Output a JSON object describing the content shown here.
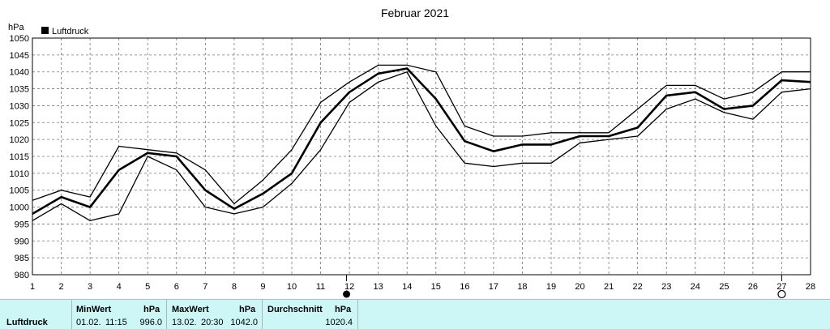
{
  "chart_data": {
    "type": "line",
    "title": "Februar 2021",
    "ylabel": "hPa",
    "legend": "Luftdruck",
    "legend_position": "top-left",
    "grid": true,
    "ylim": [
      980,
      1050
    ],
    "xlim": [
      1,
      28
    ],
    "y_ticks": [
      980,
      985,
      990,
      995,
      1000,
      1005,
      1010,
      1015,
      1020,
      1025,
      1030,
      1035,
      1040,
      1045,
      1050
    ],
    "x_ticks": [
      1,
      2,
      3,
      4,
      5,
      6,
      7,
      8,
      9,
      10,
      11,
      12,
      13,
      14,
      15,
      16,
      17,
      18,
      19,
      20,
      21,
      22,
      23,
      24,
      25,
      26,
      27,
      28
    ],
    "x": [
      1,
      2,
      3,
      4,
      5,
      6,
      7,
      8,
      9,
      10,
      11,
      12,
      13,
      14,
      15,
      16,
      17,
      18,
      19,
      20,
      21,
      22,
      23,
      24,
      25,
      26,
      27,
      28
    ],
    "series": [
      {
        "role": "max",
        "values": [
          1002,
          1005,
          1003,
          1018,
          1017,
          1016,
          1011,
          1001,
          1008,
          1017,
          1031,
          1037,
          1042,
          1042,
          1040,
          1024,
          1021,
          1021,
          1022,
          1022,
          1022,
          1029,
          1036,
          1036,
          1032,
          1034,
          1040,
          1040
        ]
      },
      {
        "role": "avg",
        "values": [
          998,
          1003,
          1000,
          1011,
          1016,
          1015,
          1005,
          999.5,
          1004,
          1010,
          1025,
          1034,
          1039.5,
          1041,
          1032,
          1019.5,
          1016.5,
          1018.5,
          1018.5,
          1021,
          1021,
          1023.5,
          1033,
          1034,
          1029,
          1030,
          1037.5,
          1037
        ]
      },
      {
        "role": "min",
        "values": [
          996,
          1001,
          996,
          998,
          1015,
          1011,
          1000,
          998,
          1000,
          1007,
          1017,
          1031,
          1037,
          1040,
          1024,
          1013,
          1012,
          1013,
          1013,
          1019,
          1020,
          1021,
          1029,
          1032,
          1028,
          1026,
          1034,
          1035
        ]
      }
    ],
    "moon_markers": [
      {
        "day": 11.9,
        "phase": "new-moon"
      },
      {
        "day": 27.0,
        "phase": "full-moon"
      }
    ]
  },
  "footer": {
    "series_label": "Luftdruck",
    "min_header": "MinWert",
    "min_unit": "hPa",
    "min_date": "01.02.",
    "min_time": "11:15",
    "min_value": "996.0",
    "max_header": "MaxWert",
    "max_unit": "hPa",
    "max_date": "13.02.",
    "max_time": "20:30",
    "max_value": "1042.0",
    "avg_header": "Durchschnitt",
    "avg_unit": "hPa",
    "avg_value": "1020.4"
  }
}
